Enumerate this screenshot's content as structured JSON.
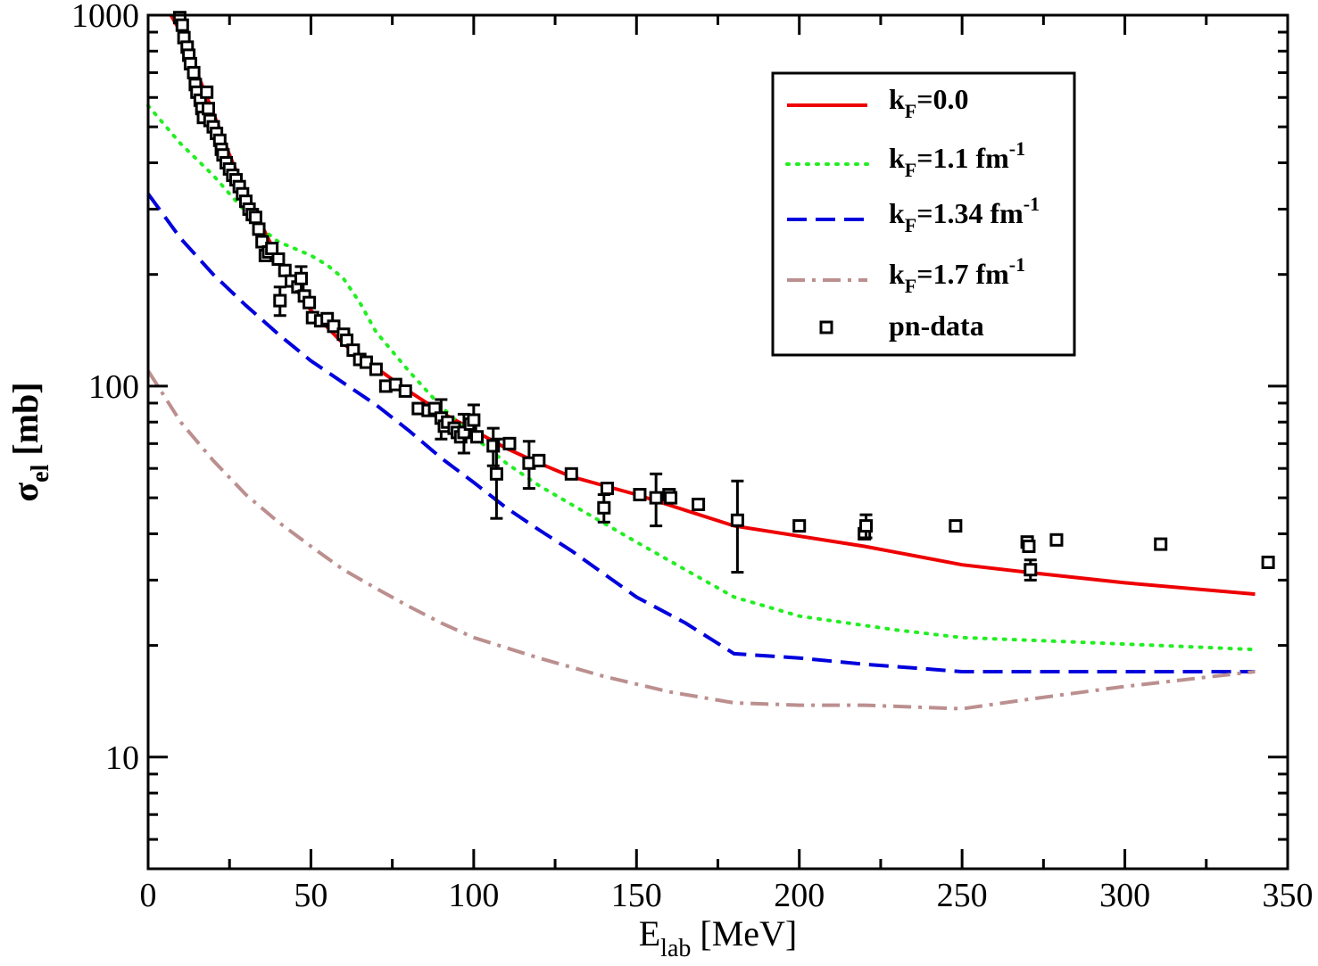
{
  "chart_data": {
    "type": "line",
    "xlabel": {
      "main": "E",
      "sub": "lab",
      "rest": " [MeV]"
    },
    "ylabel": {
      "main": "σ",
      "sub": "el",
      "rest": " [mb]"
    },
    "xlim": [
      0,
      350
    ],
    "ylim": [
      5,
      1000
    ],
    "y_scale": "log",
    "grid": false,
    "legend_position": "top-right",
    "x_ticks": [
      "0",
      "50",
      "100",
      "150",
      "200",
      "250",
      "300",
      "350"
    ],
    "y_ticks": [
      "10",
      "100",
      "1000"
    ],
    "colors": {
      "red": "#ee0000",
      "green": "#22ee22",
      "blue": "#0000dd",
      "brown": "#bc8f8f",
      "data": "#000000"
    },
    "series": [
      {
        "legend": {
          "pre": "k",
          "sub": "F",
          "post": "=0.0",
          "sup": ""
        },
        "style": "solid",
        "color": "#ee0000",
        "points": [
          [
            7,
            1060
          ],
          [
            10,
            900
          ],
          [
            15,
            700
          ],
          [
            20,
            545
          ],
          [
            25,
            420
          ],
          [
            30,
            330
          ],
          [
            35,
            270
          ],
          [
            40,
            220
          ],
          [
            45,
            185
          ],
          [
            50,
            160
          ],
          [
            60,
            130
          ],
          [
            70,
            112
          ],
          [
            80,
            97
          ],
          [
            90,
            85
          ],
          [
            100,
            76
          ],
          [
            110,
            68
          ],
          [
            120,
            62
          ],
          [
            130,
            57
          ],
          [
            150,
            51
          ],
          [
            180,
            42
          ],
          [
            220,
            37
          ],
          [
            250,
            33
          ],
          [
            270,
            31.5
          ],
          [
            300,
            29.5
          ],
          [
            340,
            27.5
          ]
        ]
      },
      {
        "legend": {
          "pre": "k",
          "sub": "F",
          "post": "=1.1 fm",
          "sup": "-1"
        },
        "style": "dotted",
        "color": "#22ee22",
        "points": [
          [
            0,
            570
          ],
          [
            10,
            450
          ],
          [
            20,
            370
          ],
          [
            25,
            330
          ],
          [
            30,
            295
          ],
          [
            35,
            265
          ],
          [
            40,
            245
          ],
          [
            50,
            225
          ],
          [
            55,
            212
          ],
          [
            60,
            195
          ],
          [
            65,
            168
          ],
          [
            70,
            140
          ],
          [
            80,
            110
          ],
          [
            90,
            88
          ],
          [
            100,
            73
          ],
          [
            110,
            62
          ],
          [
            120,
            54
          ],
          [
            130,
            48
          ],
          [
            150,
            38
          ],
          [
            165,
            32
          ],
          [
            180,
            27
          ],
          [
            200,
            24
          ],
          [
            230,
            22
          ],
          [
            250,
            21
          ],
          [
            280,
            20.5
          ],
          [
            310,
            20
          ],
          [
            340,
            19.5
          ]
        ]
      },
      {
        "legend": {
          "pre": "k",
          "sub": "F",
          "post": "=1.34 fm",
          "sup": "-1"
        },
        "style": "dashed",
        "color": "#0000dd",
        "points": [
          [
            0,
            330
          ],
          [
            10,
            250
          ],
          [
            20,
            200
          ],
          [
            30,
            165
          ],
          [
            40,
            138
          ],
          [
            50,
            117
          ],
          [
            60,
            102
          ],
          [
            70,
            89
          ],
          [
            80,
            76
          ],
          [
            90,
            64
          ],
          [
            100,
            55
          ],
          [
            110,
            47
          ],
          [
            120,
            41
          ],
          [
            130,
            36
          ],
          [
            150,
            27
          ],
          [
            165,
            23
          ],
          [
            180,
            19
          ],
          [
            200,
            18.5
          ],
          [
            220,
            17.8
          ],
          [
            250,
            17
          ],
          [
            270,
            17
          ],
          [
            300,
            17
          ],
          [
            340,
            17
          ]
        ]
      },
      {
        "legend": {
          "pre": "k",
          "sub": "F",
          "post": "=1.7 fm",
          "sup": "-1"
        },
        "style": "dashdot",
        "color": "#bc8f8f",
        "points": [
          [
            0,
            110
          ],
          [
            10,
            80
          ],
          [
            20,
            63
          ],
          [
            30,
            51
          ],
          [
            40,
            43
          ],
          [
            50,
            37
          ],
          [
            60,
            32
          ],
          [
            70,
            28.5
          ],
          [
            80,
            25.5
          ],
          [
            90,
            23
          ],
          [
            100,
            21
          ],
          [
            120,
            18.5
          ],
          [
            140,
            16.5
          ],
          [
            160,
            15
          ],
          [
            180,
            14
          ],
          [
            200,
            13.8
          ],
          [
            220,
            13.8
          ],
          [
            250,
            13.5
          ],
          [
            270,
            14.3
          ],
          [
            300,
            15.5
          ],
          [
            340,
            17
          ]
        ]
      }
    ],
    "data_series": {
      "legend": "pn-data",
      "points": [
        {
          "x": 9.7,
          "y": 985
        },
        {
          "x": 10.5,
          "y": 940
        },
        {
          "x": 11,
          "y": 870
        },
        {
          "x": 12,
          "y": 820
        },
        {
          "x": 12.5,
          "y": 780
        },
        {
          "x": 13,
          "y": 740
        },
        {
          "x": 14,
          "y": 700
        },
        {
          "x": 14.5,
          "y": 650
        },
        {
          "x": 15,
          "y": 620
        },
        {
          "x": 16,
          "y": 590
        },
        {
          "x": 16.5,
          "y": 560
        },
        {
          "x": 17,
          "y": 530
        },
        {
          "x": 18,
          "y": 620
        },
        {
          "x": 18.5,
          "y": 560
        },
        {
          "x": 19,
          "y": 520
        },
        {
          "x": 20,
          "y": 500
        },
        {
          "x": 21,
          "y": 480
        },
        {
          "x": 22,
          "y": 460
        },
        {
          "x": 22.5,
          "y": 435
        },
        {
          "x": 23,
          "y": 420
        },
        {
          "x": 24,
          "y": 400
        },
        {
          "x": 25,
          "y": 385
        },
        {
          "x": 26,
          "y": 370
        },
        {
          "x": 27,
          "y": 360
        },
        {
          "x": 28,
          "y": 345
        },
        {
          "x": 29,
          "y": 330
        },
        {
          "x": 30,
          "y": 315
        },
        {
          "x": 31,
          "y": 300
        },
        {
          "x": 32,
          "y": 290
        },
        {
          "x": 33,
          "y": 285
        },
        {
          "x": 34,
          "y": 265
        },
        {
          "x": 35,
          "y": 245
        },
        {
          "x": 36,
          "y": 225
        },
        {
          "x": 37,
          "y": 230
        },
        {
          "x": 38,
          "y": 235
        },
        {
          "x": 40,
          "y": 220
        },
        {
          "x": 40.5,
          "y": 170,
          "err": 15
        },
        {
          "x": 42,
          "y": 205
        },
        {
          "x": 44,
          "y": 192
        },
        {
          "x": 46,
          "y": 185
        },
        {
          "x": 47,
          "y": 195,
          "err": 15
        },
        {
          "x": 48,
          "y": 175
        },
        {
          "x": 49.5,
          "y": 168
        },
        {
          "x": 50.5,
          "y": 153
        },
        {
          "x": 53,
          "y": 150
        },
        {
          "x": 55,
          "y": 152
        },
        {
          "x": 57,
          "y": 145
        },
        {
          "x": 60,
          "y": 138
        },
        {
          "x": 61,
          "y": 133
        },
        {
          "x": 63,
          "y": 125
        },
        {
          "x": 65,
          "y": 118
        },
        {
          "x": 67,
          "y": 116
        },
        {
          "x": 70,
          "y": 111
        },
        {
          "x": 73,
          "y": 100
        },
        {
          "x": 76,
          "y": 101
        },
        {
          "x": 79,
          "y": 97
        },
        {
          "x": 83,
          "y": 87
        },
        {
          "x": 86,
          "y": 86
        },
        {
          "x": 88,
          "y": 87
        },
        {
          "x": 90,
          "y": 82,
          "err": 10
        },
        {
          "x": 91,
          "y": 78
        },
        {
          "x": 92,
          "y": 80
        },
        {
          "x": 94,
          "y": 77
        },
        {
          "x": 95,
          "y": 75
        },
        {
          "x": 96,
          "y": 73
        },
        {
          "x": 97,
          "y": 75,
          "err": 9
        },
        {
          "x": 99,
          "y": 79
        },
        {
          "x": 100,
          "y": 81,
          "err": 8
        },
        {
          "x": 101,
          "y": 73
        },
        {
          "x": 106,
          "y": 69,
          "err": 8
        },
        {
          "x": 107,
          "y": 58,
          "err": 14
        },
        {
          "x": 111,
          "y": 70
        },
        {
          "x": 117,
          "y": 62,
          "err": 9
        },
        {
          "x": 120,
          "y": 63
        },
        {
          "x": 130,
          "y": 58
        },
        {
          "x": 140,
          "y": 47,
          "err": 4
        },
        {
          "x": 141,
          "y": 53
        },
        {
          "x": 151,
          "y": 51
        },
        {
          "x": 156,
          "y": 50,
          "err": 8
        },
        {
          "x": 160,
          "y": 51
        },
        {
          "x": 160.5,
          "y": 50
        },
        {
          "x": 169,
          "y": 48
        },
        {
          "x": 181,
          "y": 43.5,
          "err": 12
        },
        {
          "x": 200,
          "y": 42
        },
        {
          "x": 220,
          "y": 40
        },
        {
          "x": 220.5,
          "y": 42,
          "err": 3
        },
        {
          "x": 248,
          "y": 42
        },
        {
          "x": 270,
          "y": 38
        },
        {
          "x": 270.5,
          "y": 37
        },
        {
          "x": 271,
          "y": 32,
          "err": 2
        },
        {
          "x": 279,
          "y": 38.5
        },
        {
          "x": 311,
          "y": 37.5
        },
        {
          "x": 344,
          "y": 33.5
        }
      ]
    }
  }
}
